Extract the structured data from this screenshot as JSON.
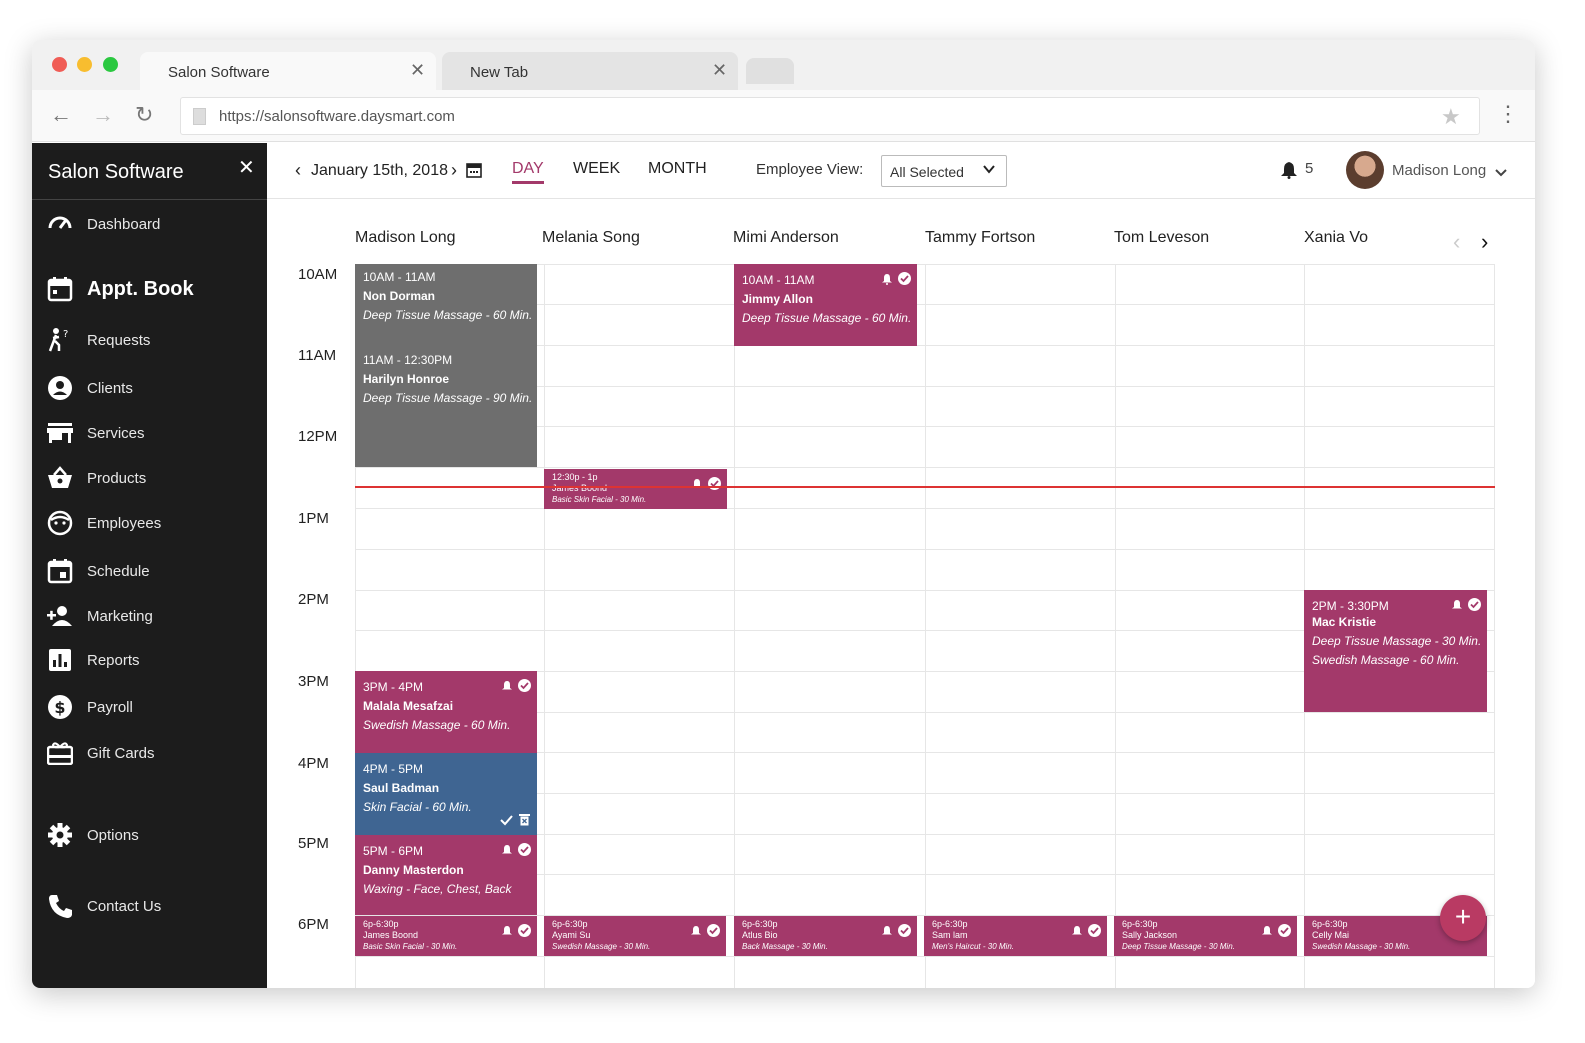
{
  "browser": {
    "tabs": [
      {
        "label": "Salon Software"
      },
      {
        "label": "New Tab"
      }
    ],
    "url": "https://salonsoftware.daysmart.com"
  },
  "sidebar": {
    "title": "Salon Software",
    "items": [
      {
        "label": "Dashboard",
        "icon": "dashboard-icon"
      },
      {
        "label": "Appt. Book",
        "icon": "calendar-icon",
        "active": true
      },
      {
        "label": "Requests",
        "icon": "requests-icon"
      },
      {
        "label": "Clients",
        "icon": "account-circle-icon"
      },
      {
        "label": "Services",
        "icon": "store-icon"
      },
      {
        "label": "Products",
        "icon": "basket-icon"
      },
      {
        "label": "Employees",
        "icon": "face-icon"
      },
      {
        "label": "Schedule",
        "icon": "schedule-icon"
      },
      {
        "label": "Marketing",
        "icon": "person-add-icon"
      },
      {
        "label": "Reports",
        "icon": "bar-chart-icon"
      },
      {
        "label": "Payroll",
        "icon": "dollar-icon"
      },
      {
        "label": "Gift Cards",
        "icon": "gift-card-icon"
      },
      {
        "label": "Options",
        "icon": "gear-icon"
      },
      {
        "label": "Contact Us",
        "icon": "phone-icon"
      }
    ]
  },
  "header": {
    "date": "January 15th, 2018",
    "views": [
      "DAY",
      "WEEK",
      "MONTH"
    ],
    "active_view": "DAY",
    "employee_view_label": "Employee View:",
    "employee_view_value": "All Selected",
    "notifications": "5",
    "user": "Madison Long"
  },
  "calendar": {
    "employees": [
      "Madison Long",
      "Melania Song",
      "Mimi Anderson",
      "Tammy Fortson",
      "Tom Leveson",
      "Xania Vo"
    ],
    "times": [
      "10AM",
      "11AM",
      "12PM",
      "1PM",
      "2PM",
      "3PM",
      "4PM",
      "5PM",
      "6PM"
    ],
    "appointments": [
      {
        "time": "10AM - 11AM",
        "name": "Non Dorman",
        "service": "Deep Tissue Massage - 60 Min."
      },
      {
        "time": "11AM - 12:30PM",
        "name": "Harilyn Honroe",
        "service": "Deep Tissue Massage - 90 Min."
      },
      {
        "time": "10AM - 11AM",
        "name": "Jimmy Allon",
        "service": "Deep Tissue Massage - 60 Min."
      },
      {
        "time": "12:30p - 1p",
        "name": "James Boond",
        "service": "Basic Skin Facial - 30 Min."
      },
      {
        "time": "2PM - 3:30PM",
        "name": "Mac Kristie",
        "service": "Deep Tissue Massage - 30 Min.",
        "service2": "Swedish Massage - 60 Min."
      },
      {
        "time": "3PM - 4PM",
        "name": "Malala Mesafzai",
        "service": "Swedish Massage - 60 Min."
      },
      {
        "time": "4PM - 5PM",
        "name": "Saul Badman",
        "service": "Skin Facial - 60 Min."
      },
      {
        "time": "5PM - 6PM",
        "name": "Danny Masterdon",
        "service": "Waxing - Face, Chest, Back"
      },
      {
        "time": "6p-6:30p",
        "name": "James Boond",
        "service": "Basic Skin Facial - 30 Min."
      },
      {
        "time": "6p-6:30p",
        "name": "Ayami Su",
        "service": "Swedish Massage - 30 Min."
      },
      {
        "time": "6p-6:30p",
        "name": "Atlus Bio",
        "service": "Back Massage - 30 Min."
      },
      {
        "time": "6p-6:30p",
        "name": "Sam lam",
        "service": "Men's Haircut - 30 Min."
      },
      {
        "time": "6p-6:30p",
        "name": "Sally Jackson",
        "service": "Deep Tissue Massage - 30 Min."
      },
      {
        "time": "6p-6:30p",
        "name": "Celly Mai",
        "service": "Swedish Massage - 30 Min."
      }
    ]
  },
  "colors": {
    "appointment": "#a3396a",
    "completed": "#6e6e6e",
    "selected": "#3f6592",
    "now_line": "#dd3333",
    "sidebar_bg": "#1c1c1c"
  }
}
